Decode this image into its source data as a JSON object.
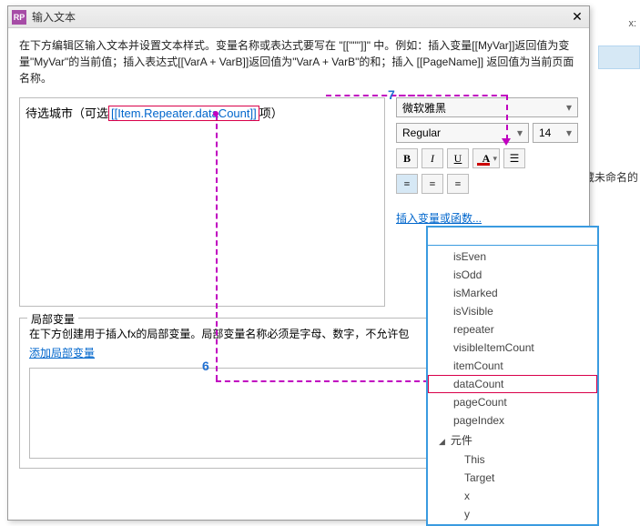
{
  "background": {
    "x_label": "x:",
    "hidden_text": "隐藏未命名的"
  },
  "dialog": {
    "icon_text": "RP",
    "title": "输入文本",
    "description": "在下方编辑区输入文本并设置文本样式。变量名称或表达式要写在 \"[[\"\"\"]]\" 中。例如：插入变量[[MyVar]]返回值为变量\"MyVar\"的当前值；插入表达式[[VarA + VarB]]返回值为\"VarA + VarB\"的和；插入 [[PageName]] 返回值为当前页面名称。",
    "editor": {
      "prefix": "待选城市（可选",
      "expression": "[[Item.Repeater.dataCount]]",
      "suffix": "项）"
    },
    "font_select": "微软雅黑",
    "weight_select": "Regular",
    "size_select": "14",
    "bold": "B",
    "italic": "I",
    "underline": "U",
    "insert_link": "插入变量或函数...",
    "localvar": {
      "legend": "局部变量",
      "desc": "在下方创建用于插入fx的局部变量。局部变量名称必须是字母、数字，不允许包",
      "add_link": "添加局部变量"
    }
  },
  "dropdown": {
    "items": [
      "isEven",
      "isOdd",
      "isMarked",
      "isVisible",
      "repeater",
      "visibleItemCount",
      "itemCount",
      "dataCount",
      "pageCount",
      "pageIndex"
    ],
    "category": "元件",
    "sub": [
      "This",
      "Target",
      "x",
      "y"
    ],
    "highlight_index": 7
  },
  "annotation": {
    "num7": "7",
    "num6": "6",
    "arrow_color": "#c000c0"
  }
}
